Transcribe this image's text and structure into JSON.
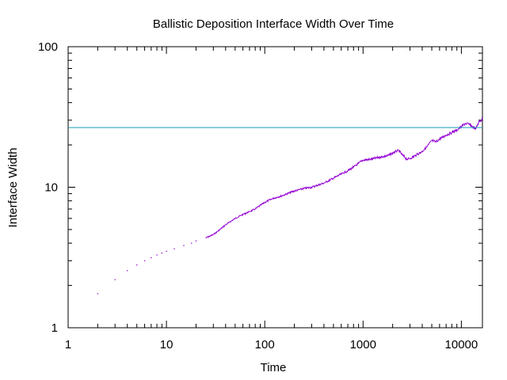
{
  "chart_data": {
    "type": "line",
    "title": "Ballistic Deposition Interface Width Over Time",
    "xlabel": "Time",
    "ylabel": "Interface Width",
    "x_scale": "log",
    "y_scale": "log",
    "xlim": [
      1,
      16384
    ],
    "ylim": [
      1,
      100
    ],
    "x_ticks": [
      {
        "value": 1,
        "label": "1"
      },
      {
        "value": 10,
        "label": "10"
      },
      {
        "value": 100,
        "label": "100"
      },
      {
        "value": 1000,
        "label": "1000"
      },
      {
        "value": 10000,
        "label": "10000"
      }
    ],
    "y_ticks": [
      {
        "value": 1,
        "label": "1"
      },
      {
        "value": 10,
        "label": "10"
      },
      {
        "value": 100,
        "label": "100"
      }
    ],
    "grid": false,
    "legend": "none",
    "series": [
      {
        "color": "#9400d3",
        "style": "points-then-line",
        "x": [
          2,
          3,
          4,
          5,
          6,
          7,
          8,
          9,
          10,
          12,
          15,
          18,
          20,
          25,
          30,
          35,
          40,
          50,
          60,
          70,
          80,
          100,
          120,
          150,
          200,
          250,
          300,
          400,
          500,
          600,
          700,
          800,
          900,
          1000,
          1200,
          1500,
          1800,
          2000,
          2300,
          2500,
          2800,
          3000,
          3500,
          4000,
          4500,
          5000,
          5500,
          6000,
          7000,
          8000,
          9000,
          10000,
          11000,
          12000,
          13000,
          14000,
          15000,
          16384
        ],
        "y": [
          1.75,
          2.2,
          2.55,
          2.8,
          3.0,
          3.15,
          3.3,
          3.4,
          3.5,
          3.65,
          3.85,
          4.0,
          4.15,
          4.35,
          4.6,
          5.0,
          5.4,
          6.0,
          6.4,
          6.7,
          7.0,
          7.8,
          8.3,
          8.7,
          9.4,
          9.8,
          10.0,
          10.7,
          11.6,
          12.4,
          13.1,
          13.9,
          14.8,
          15.6,
          15.8,
          16.4,
          16.8,
          17.5,
          18.3,
          17.0,
          15.8,
          16.0,
          17.0,
          18.0,
          19.5,
          21.5,
          21.0,
          22.0,
          23.5,
          24.5,
          25.5,
          27.0,
          28.5,
          28.0,
          27.0,
          26.0,
          29.0,
          30.5
        ]
      },
      {
        "color": "#1a9cb8",
        "style": "line",
        "x": [
          1,
          16384
        ],
        "y": [
          26.6,
          26.6
        ]
      }
    ]
  }
}
